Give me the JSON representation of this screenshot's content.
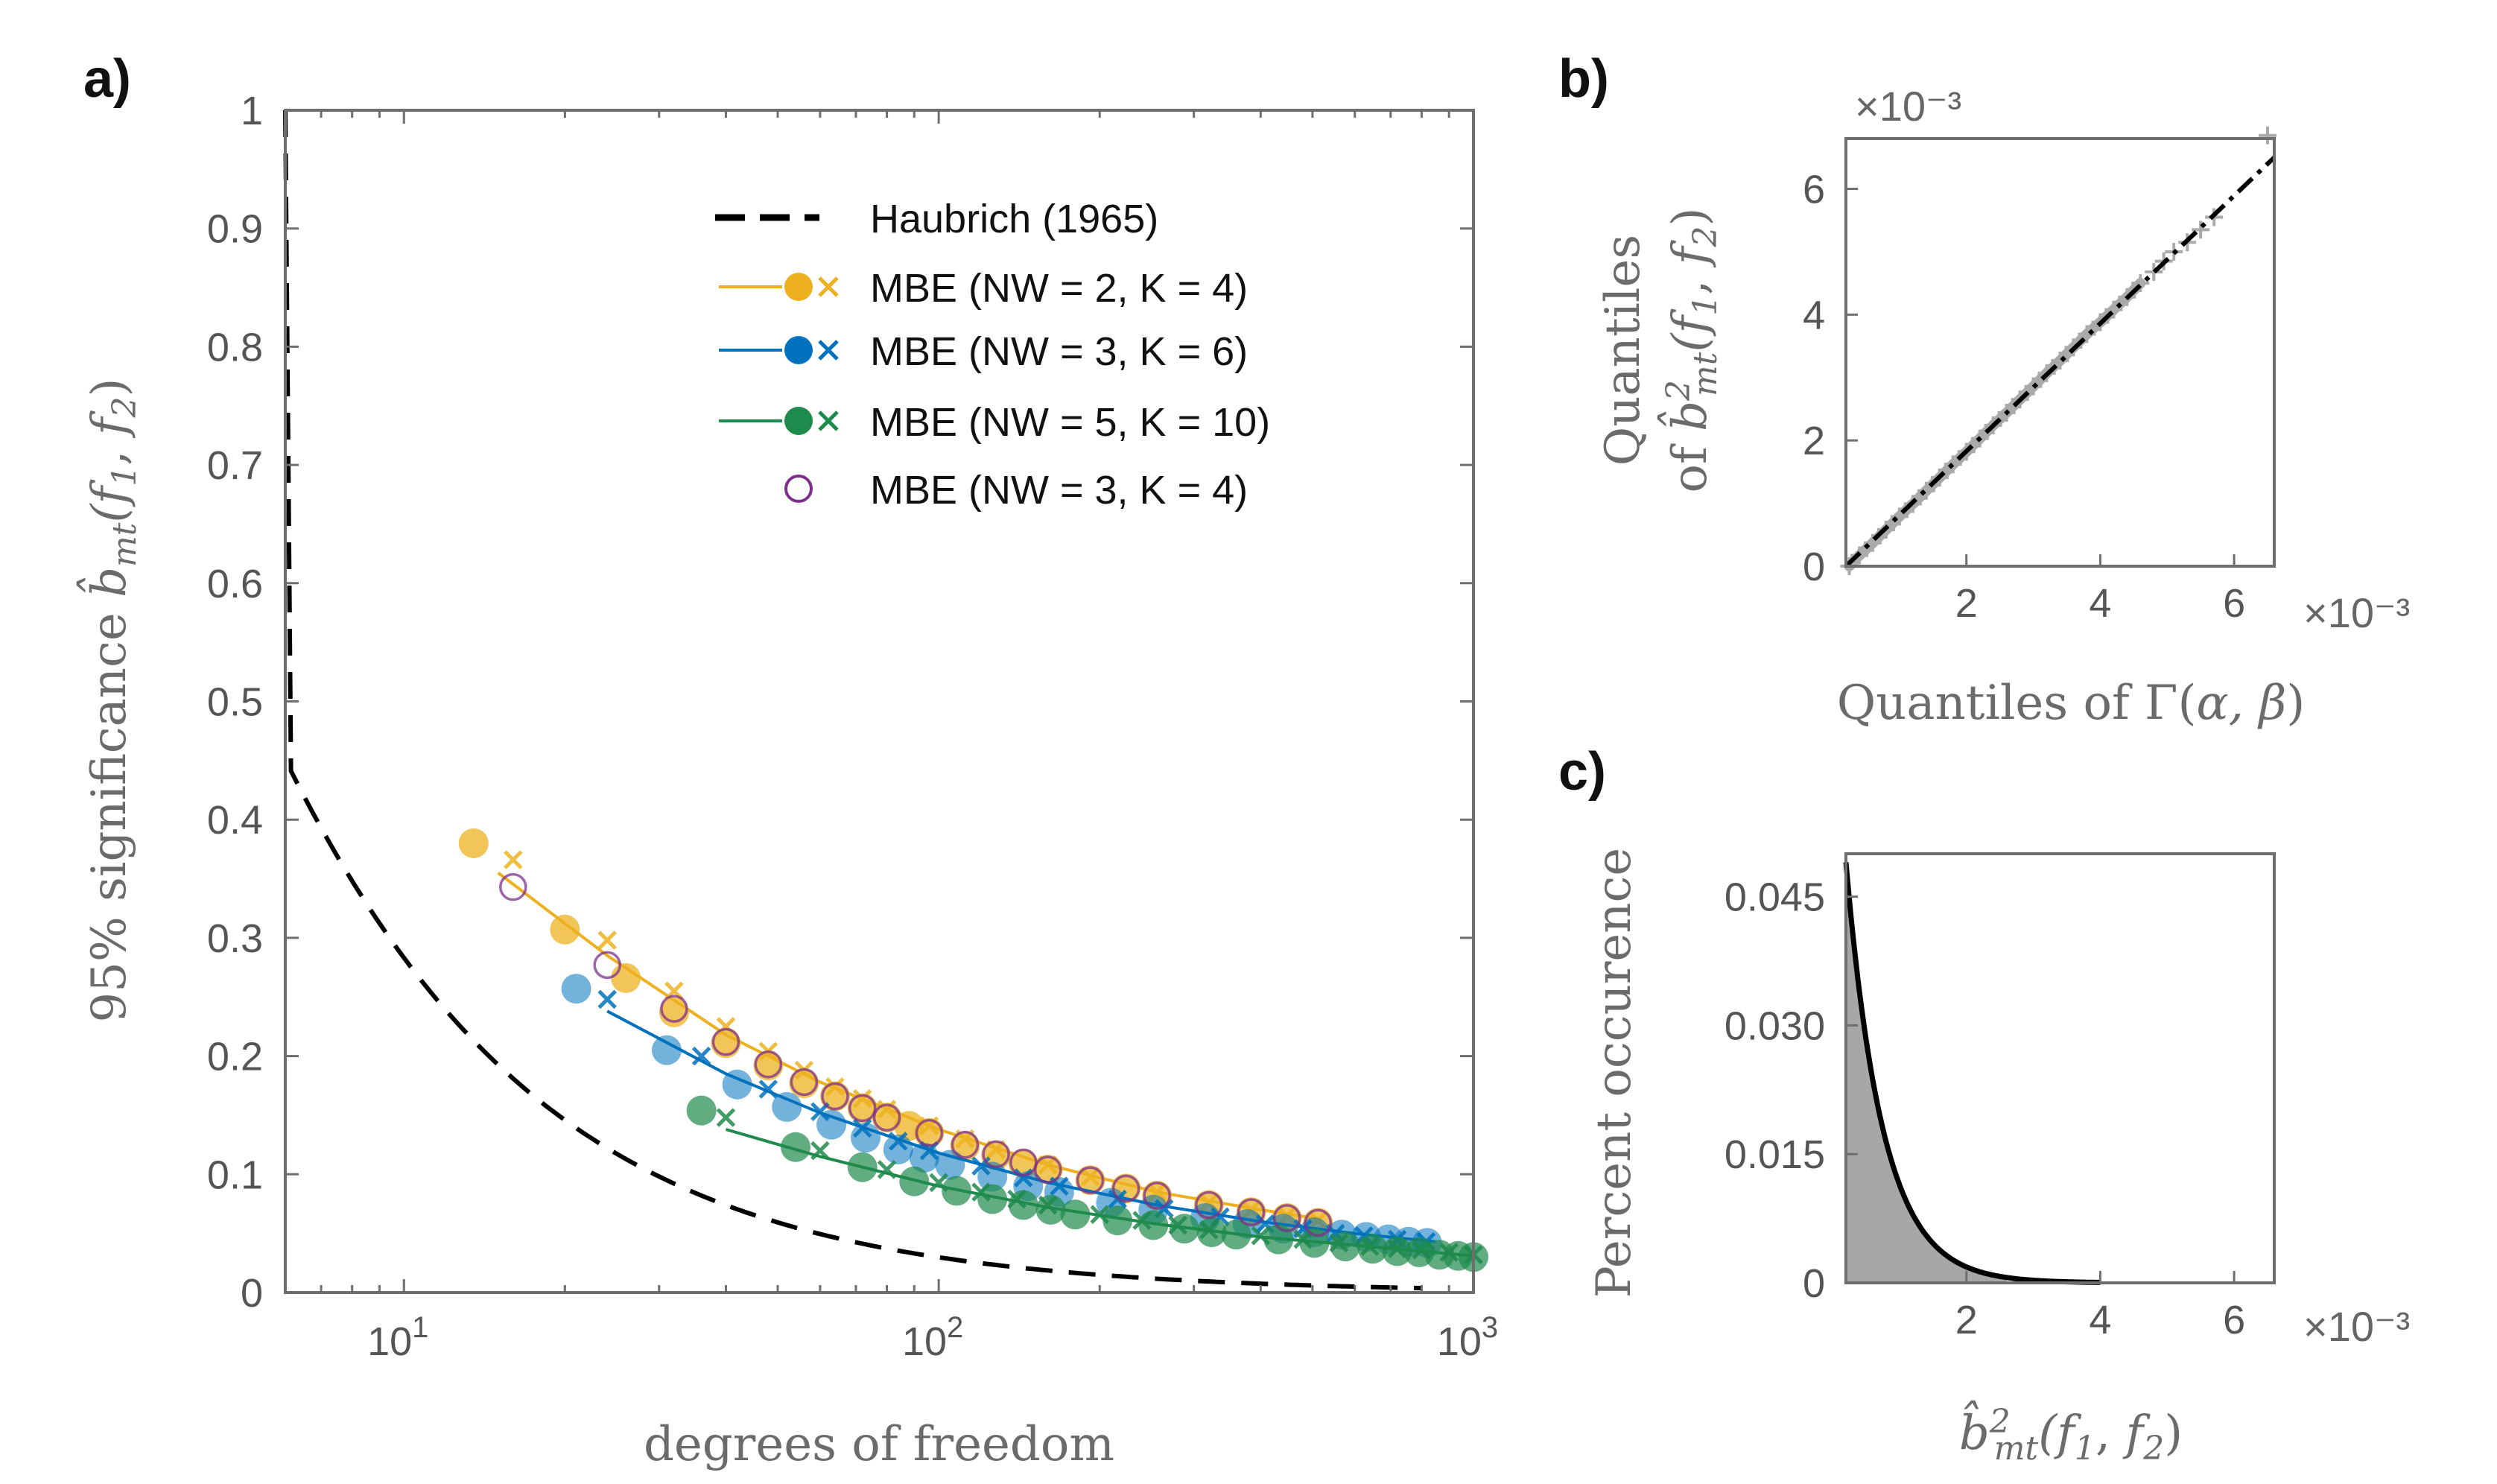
{
  "chart_data": [
    {
      "id": "a",
      "panel_label": "a)",
      "type": "line",
      "xscale": "log",
      "xlim": [
        6,
        1000
      ],
      "ylim": [
        0,
        1
      ],
      "xlabel": "degrees of freedom",
      "ylabel_prefix": "95% significance ",
      "ylabel_math": "b̂",
      "ylabel_sub": "mt",
      "ylabel_args": "(f",
      "ylabel_tail": ")",
      "x_ticks": [
        {
          "value": 10,
          "base": "10",
          "exp": "1"
        },
        {
          "value": 100,
          "base": "10",
          "exp": "2"
        },
        {
          "value": 1000,
          "base": "10",
          "exp": "3"
        }
      ],
      "y_ticks": [
        "0",
        "0.1",
        "0.2",
        "0.3",
        "0.4",
        "0.5",
        "0.6",
        "0.7",
        "0.8",
        "0.9",
        "1"
      ],
      "y_tick_values": [
        0,
        0.1,
        0.2,
        0.3,
        0.4,
        0.5,
        0.6,
        0.7,
        0.8,
        0.9,
        1
      ],
      "legend": [
        {
          "label": "Haubrich (1965)",
          "style": "dashed",
          "color": "#000000"
        },
        {
          "label": "MBE (NW = 2, K = 4)",
          "style": "line-dot-x",
          "color": "#EDB120"
        },
        {
          "label": "MBE (NW = 3, K = 6)",
          "style": "line-dot-x",
          "color": "#0072BD"
        },
        {
          "label": "MBE (NW = 5, K = 10)",
          "style": "line-dot-x",
          "color": "#1E8A4C"
        },
        {
          "label": "MBE (NW = 3, K = 4)",
          "style": "open-circle",
          "color": "#7E2F8E"
        }
      ],
      "series": [
        {
          "name": "Haubrich (1965)",
          "kind": "formula",
          "formula": "1 - 0.05^(1/(n-1))",
          "x_range": [
            6,
            800
          ],
          "color": "#000000"
        },
        {
          "name": "MBE (NW = 2, K = 4)",
          "color": "#EDB120",
          "dot_alpha": 0.75,
          "dots": [
            [
              13.5,
              0.38
            ],
            [
              20,
              0.307
            ],
            [
              26,
              0.266
            ],
            [
              32,
              0.237
            ],
            [
              40,
              0.211
            ],
            [
              48,
              0.192
            ],
            [
              56,
              0.177
            ],
            [
              64,
              0.166
            ],
            [
              72,
              0.156
            ],
            [
              80,
              0.148
            ],
            [
              88,
              0.141
            ],
            [
              96,
              0.135
            ],
            [
              112,
              0.124
            ],
            [
              128,
              0.116
            ],
            [
              144,
              0.109
            ],
            [
              160,
              0.104
            ],
            [
              192,
              0.095
            ],
            [
              224,
              0.088
            ],
            [
              256,
              0.082
            ],
            [
              320,
              0.074
            ],
            [
              384,
              0.068
            ],
            [
              448,
              0.063
            ],
            [
              512,
              0.059
            ]
          ],
          "crosses": [
            [
              16,
              0.366
            ],
            [
              24,
              0.298
            ],
            [
              32,
              0.255
            ],
            [
              40,
              0.225
            ],
            [
              48,
              0.204
            ],
            [
              56,
              0.188
            ],
            [
              64,
              0.174
            ],
            [
              72,
              0.164
            ],
            [
              80,
              0.155
            ],
            [
              96,
              0.141
            ],
            [
              112,
              0.13
            ],
            [
              128,
              0.121
            ],
            [
              160,
              0.108
            ],
            [
              192,
              0.098
            ],
            [
              256,
              0.085
            ],
            [
              320,
              0.076
            ],
            [
              384,
              0.07
            ],
            [
              448,
              0.065
            ],
            [
              512,
              0.061
            ]
          ],
          "fit": [
            [
              15,
              0.355
            ],
            [
              24,
              0.285
            ],
            [
              40,
              0.218
            ],
            [
              60,
              0.178
            ],
            [
              100,
              0.138
            ],
            [
              160,
              0.108
            ],
            [
              256,
              0.085
            ],
            [
              400,
              0.07
            ],
            [
              520,
              0.062
            ]
          ]
        },
        {
          "name": "MBE (NW = 3, K = 6)",
          "color": "#0072BD",
          "dot_alpha": 0.55,
          "dots": [
            [
              21,
              0.257
            ],
            [
              31,
              0.205
            ],
            [
              42,
              0.176
            ],
            [
              52,
              0.157
            ],
            [
              63,
              0.142
            ],
            [
              73,
              0.131
            ],
            [
              84,
              0.121
            ],
            [
              94,
              0.114
            ],
            [
              105,
              0.108
            ],
            [
              126,
              0.098
            ],
            [
              147,
              0.09
            ],
            [
              168,
              0.085
            ],
            [
              210,
              0.076
            ],
            [
              252,
              0.07
            ],
            [
              315,
              0.063
            ],
            [
              378,
              0.058
            ],
            [
              441,
              0.054
            ],
            [
              504,
              0.051
            ],
            [
              567,
              0.049
            ],
            [
              630,
              0.047
            ],
            [
              693,
              0.045
            ],
            [
              756,
              0.043
            ],
            [
              819,
              0.042
            ]
          ],
          "crosses": [
            [
              24,
              0.248
            ],
            [
              36,
              0.2
            ],
            [
              48,
              0.172
            ],
            [
              60,
              0.153
            ],
            [
              72,
              0.139
            ],
            [
              84,
              0.128
            ],
            [
              96,
              0.12
            ],
            [
              120,
              0.107
            ],
            [
              144,
              0.097
            ],
            [
              168,
              0.09
            ],
            [
              216,
              0.079
            ],
            [
              264,
              0.071
            ],
            [
              336,
              0.064
            ],
            [
              408,
              0.058
            ],
            [
              480,
              0.054
            ],
            [
              552,
              0.05
            ],
            [
              624,
              0.048
            ],
            [
              720,
              0.045
            ],
            [
              816,
              0.043
            ]
          ],
          "fit": [
            [
              24,
              0.238
            ],
            [
              40,
              0.185
            ],
            [
              60,
              0.152
            ],
            [
              100,
              0.118
            ],
            [
              160,
              0.093
            ],
            [
              256,
              0.074
            ],
            [
              400,
              0.06
            ],
            [
              600,
              0.05
            ],
            [
              850,
              0.043
            ]
          ]
        },
        {
          "name": "MBE (NW = 5, K = 10)",
          "color": "#1E8A4C",
          "dot_alpha": 0.7,
          "dots": [
            [
              36,
              0.154
            ],
            [
              54,
              0.123
            ],
            [
              72,
              0.106
            ],
            [
              90,
              0.094
            ],
            [
              108,
              0.086
            ],
            [
              126,
              0.079
            ],
            [
              144,
              0.074
            ],
            [
              162,
              0.07
            ],
            [
              180,
              0.066
            ],
            [
              216,
              0.061
            ],
            [
              252,
              0.057
            ],
            [
              288,
              0.054
            ],
            [
              324,
              0.051
            ],
            [
              360,
              0.049
            ],
            [
              432,
              0.045
            ],
            [
              504,
              0.042
            ],
            [
              576,
              0.039
            ],
            [
              648,
              0.037
            ],
            [
              720,
              0.035
            ],
            [
              792,
              0.034
            ],
            [
              864,
              0.032
            ],
            [
              936,
              0.031
            ],
            [
              1000,
              0.03
            ]
          ],
          "crosses": [
            [
              40,
              0.148
            ],
            [
              60,
              0.12
            ],
            [
              80,
              0.104
            ],
            [
              100,
              0.093
            ],
            [
              120,
              0.085
            ],
            [
              140,
              0.079
            ],
            [
              160,
              0.074
            ],
            [
              200,
              0.066
            ],
            [
              240,
              0.061
            ],
            [
              280,
              0.057
            ],
            [
              320,
              0.053
            ],
            [
              400,
              0.048
            ],
            [
              480,
              0.045
            ],
            [
              560,
              0.042
            ],
            [
              640,
              0.039
            ],
            [
              720,
              0.037
            ],
            [
              800,
              0.036
            ],
            [
              900,
              0.034
            ],
            [
              1000,
              0.032
            ]
          ],
          "fit": [
            [
              40,
              0.138
            ],
            [
              60,
              0.115
            ],
            [
              100,
              0.09
            ],
            [
              160,
              0.072
            ],
            [
              256,
              0.058
            ],
            [
              400,
              0.047
            ],
            [
              600,
              0.04
            ],
            [
              1000,
              0.031
            ]
          ]
        },
        {
          "name": "MBE (NW = 3, K = 4)",
          "color": "#7E2F8E",
          "open_circles": [
            [
              16,
              0.343
            ],
            [
              24,
              0.277
            ],
            [
              32,
              0.24
            ],
            [
              40,
              0.212
            ],
            [
              48,
              0.193
            ],
            [
              56,
              0.178
            ],
            [
              64,
              0.166
            ],
            [
              72,
              0.156
            ],
            [
              80,
              0.148
            ],
            [
              96,
              0.135
            ],
            [
              112,
              0.125
            ],
            [
              128,
              0.117
            ],
            [
              144,
              0.11
            ],
            [
              160,
              0.104
            ],
            [
              192,
              0.095
            ],
            [
              224,
              0.088
            ],
            [
              256,
              0.082
            ],
            [
              320,
              0.074
            ],
            [
              384,
              0.068
            ],
            [
              448,
              0.063
            ],
            [
              512,
              0.059
            ]
          ]
        }
      ]
    },
    {
      "id": "b",
      "panel_label": "b)",
      "type": "scatter",
      "xlim": [
        0.2,
        6.6
      ],
      "ylim": [
        0,
        6.8
      ],
      "x_ticks": [
        "2",
        "4",
        "6"
      ],
      "x_tick_values": [
        2,
        4,
        6
      ],
      "y_ticks": [
        "0",
        "2",
        "4",
        "6"
      ],
      "y_tick_values": [
        0,
        2,
        4,
        6
      ],
      "x_exponent": "×10⁻³",
      "y_exponent": "×10⁻³",
      "xlabel_prefix": "Quantiles of Γ(",
      "xlabel_math": "α, β",
      "xlabel_tail": ")",
      "ylabel_line1": "Quantiles",
      "ylabel_line2_prefix": "of ",
      "ylabel_math": "b̂",
      "ylabel_sup": "2",
      "ylabel_sub": "mt",
      "ylabel_args": "(f",
      "ylabel_tail": ")",
      "reference_line": {
        "x": [
          0.2,
          6.6
        ],
        "y": [
          0.0,
          6.5
        ],
        "style": "dash-dot",
        "color": "#000000"
      },
      "quantile_points": {
        "color": "#aaaaaa",
        "x": [
          0.25,
          0.4,
          0.6,
          0.8,
          1.0,
          1.2,
          1.4,
          1.6,
          1.8,
          2.0,
          2.2,
          2.4,
          2.6,
          2.8,
          3.0,
          3.2,
          3.4,
          3.6,
          3.8,
          4.0,
          4.2,
          4.4,
          4.6,
          4.8,
          4.95,
          5.1,
          5.3,
          5.5,
          5.7,
          6.5
        ],
        "y": [
          0.0,
          0.17,
          0.37,
          0.58,
          0.79,
          0.99,
          1.2,
          1.41,
          1.62,
          1.82,
          2.03,
          2.24,
          2.44,
          2.65,
          2.86,
          3.07,
          3.27,
          3.48,
          3.69,
          3.88,
          4.08,
          4.28,
          4.5,
          4.68,
          4.85,
          5.0,
          5.15,
          5.35,
          5.55,
          6.85
        ]
      }
    },
    {
      "id": "c",
      "panel_label": "c)",
      "type": "area",
      "xlim": [
        0.2,
        6.6
      ],
      "ylim": [
        0,
        0.05
      ],
      "x_ticks": [
        "2",
        "4",
        "6"
      ],
      "x_tick_values": [
        2,
        4,
        6
      ],
      "y_ticks": [
        "0",
        "0.015",
        "0.030",
        "0.045"
      ],
      "y_tick_values": [
        0,
        0.015,
        0.03,
        0.045
      ],
      "x_exponent": "×10⁻³",
      "ylabel": "Percent occurence",
      "xlabel_math": "b̂",
      "xlabel_sup": "2",
      "xlabel_sub": "mt",
      "xlabel_args": "(f",
      "xlabel_tail": ")",
      "pdf": {
        "formula": "0.049 * exp(-(x - 0.2) / 0.55)",
        "x_range": [
          0.2,
          4.0
        ],
        "fill_range": [
          0.2,
          2.6
        ],
        "line_color": "#000000",
        "fill_color": "#a7a7aa"
      }
    }
  ]
}
